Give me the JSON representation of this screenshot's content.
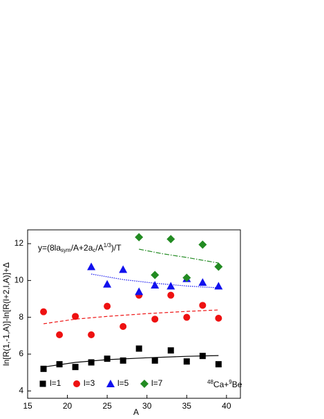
{
  "chart_data": {
    "type": "scatter",
    "x_label": "A",
    "y_label": "ln[R(1,-1,A)]-ln[R(l+2,l,A)]+Δ",
    "annotation": [
      "y=(8la",
      "sym",
      "/A+2a",
      "c",
      "/A",
      "1/3",
      ")/T"
    ],
    "system_label": [
      "48",
      "Ca+",
      "9",
      "Be"
    ],
    "xlim": [
      15,
      41.75
    ],
    "ylim": [
      3.6,
      12.75
    ],
    "xticks": [
      15,
      20,
      25,
      30,
      35,
      40
    ],
    "yticks": [
      4,
      6,
      8,
      10,
      12
    ],
    "legend": "lower left",
    "series": [
      {
        "name": "l=1",
        "color": "#000000",
        "marker": "square",
        "x": [
          17,
          19,
          21,
          23,
          25,
          27,
          29,
          31,
          33,
          35,
          37,
          39
        ],
        "values": [
          5.2,
          5.45,
          5.3,
          5.55,
          5.75,
          5.65,
          6.3,
          5.65,
          6.2,
          5.6,
          5.9,
          5.45
        ]
      },
      {
        "name": "l=3",
        "color": "#ee1111",
        "marker": "circle",
        "x": [
          17,
          19,
          21,
          23,
          25,
          27,
          29,
          31,
          33,
          35,
          37,
          39
        ],
        "values": [
          8.3,
          7.05,
          8.05,
          7.05,
          8.6,
          7.5,
          9.2,
          7.9,
          9.2,
          8.0,
          8.65,
          7.95
        ]
      },
      {
        "name": "l=5",
        "color": "#1111ee",
        "marker": "triangle",
        "x": [
          23,
          25,
          27,
          29,
          31,
          33,
          35,
          37,
          39
        ],
        "values": [
          10.75,
          9.8,
          10.6,
          9.4,
          9.75,
          9.7,
          10.1,
          9.9,
          9.7
        ]
      },
      {
        "name": "l=7",
        "color": "#228b22",
        "marker": "diamond",
        "x": [
          29,
          31,
          33,
          35,
          37,
          39
        ],
        "values": [
          12.35,
          10.3,
          12.25,
          10.15,
          11.95,
          10.75
        ]
      }
    ],
    "fits": [
      {
        "color": "#000000",
        "dash": "none",
        "x": [
          17,
          21,
          25,
          30,
          35,
          39
        ],
        "values": [
          5.3,
          5.55,
          5.7,
          5.8,
          5.88,
          5.92
        ]
      },
      {
        "color": "#ee1111",
        "dash": "5 3",
        "x": [
          17,
          21,
          25,
          30,
          35,
          39
        ],
        "values": [
          7.65,
          7.9,
          8.05,
          8.2,
          8.32,
          8.4
        ]
      },
      {
        "color": "#1111ee",
        "dash": "1.5 1.5",
        "x": [
          23,
          27,
          31,
          35,
          39
        ],
        "values": [
          10.35,
          10.05,
          9.85,
          9.7,
          9.6
        ]
      },
      {
        "color": "#228b22",
        "dash": "7 2 1.5 2",
        "x": [
          29,
          32,
          35,
          39
        ],
        "values": [
          11.7,
          11.45,
          11.25,
          10.95
        ]
      }
    ]
  }
}
